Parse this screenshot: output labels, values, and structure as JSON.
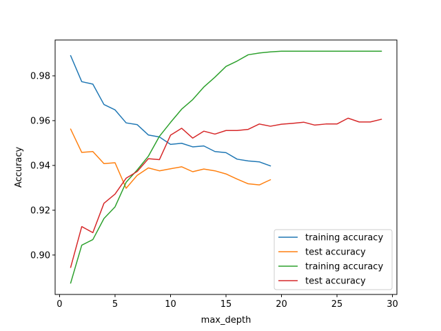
{
  "chart_data": {
    "type": "line",
    "title": "",
    "xlabel": "max_depth",
    "ylabel": "Accuracy",
    "xlim": [
      -0.4,
      30.4
    ],
    "ylim": [
      0.8824,
      0.996
    ],
    "xticks": [
      0,
      5,
      10,
      15,
      20,
      25,
      30
    ],
    "yticks": [
      0.9,
      0.92,
      0.94,
      0.96,
      0.98
    ],
    "ytick_labels": [
      "0.90",
      "0.92",
      "0.94",
      "0.96",
      "0.98"
    ],
    "grid": false,
    "legend_position": "lower-right",
    "series": [
      {
        "name": "training accuracy",
        "color": "#1f77b4",
        "x": [
          1,
          2,
          3,
          4,
          5,
          6,
          7,
          8,
          9,
          10,
          11,
          12,
          13,
          14,
          15,
          16,
          17,
          18,
          19
        ],
        "y": [
          0.989,
          0.9774,
          0.9763,
          0.9672,
          0.9648,
          0.959,
          0.9582,
          0.9536,
          0.9527,
          0.9494,
          0.9499,
          0.9483,
          0.9487,
          0.9462,
          0.9457,
          0.9428,
          0.942,
          0.9416,
          0.9398
        ]
      },
      {
        "name": "test accuracy",
        "color": "#ff7f0e",
        "x": [
          1,
          2,
          3,
          4,
          5,
          6,
          7,
          8,
          9,
          10,
          11,
          12,
          13,
          14,
          15,
          16,
          17,
          18,
          19
        ],
        "y": [
          0.9562,
          0.9458,
          0.9462,
          0.9408,
          0.9412,
          0.9298,
          0.9356,
          0.9389,
          0.9376,
          0.9385,
          0.9394,
          0.9372,
          0.9384,
          0.9376,
          0.9362,
          0.9339,
          0.9318,
          0.9313,
          0.9336
        ]
      },
      {
        "name": "training accuracy",
        "color": "#2ca02c",
        "x": [
          1,
          2,
          3,
          4,
          5,
          6,
          7,
          8,
          9,
          10,
          11,
          12,
          13,
          14,
          15,
          16,
          17,
          18,
          19,
          20,
          21,
          22,
          23,
          24,
          25,
          26,
          27,
          28,
          29
        ],
        "y": [
          0.8875,
          0.9044,
          0.9069,
          0.9163,
          0.9215,
          0.9325,
          0.938,
          0.9441,
          0.953,
          0.9592,
          0.9651,
          0.9694,
          0.975,
          0.9794,
          0.9842,
          0.9866,
          0.9894,
          0.9902,
          0.9907,
          0.991,
          0.991,
          0.991,
          0.991,
          0.991,
          0.991,
          0.991,
          0.991,
          0.991,
          0.991
        ]
      },
      {
        "name": "test accuracy",
        "color": "#d62728",
        "x": [
          1,
          2,
          3,
          4,
          5,
          6,
          7,
          8,
          9,
          10,
          11,
          12,
          13,
          14,
          15,
          16,
          17,
          18,
          19,
          20,
          21,
          22,
          23,
          24,
          25,
          26,
          27,
          28,
          29
        ],
        "y": [
          0.8945,
          0.9127,
          0.91,
          0.9231,
          0.9272,
          0.9343,
          0.9373,
          0.943,
          0.9426,
          0.9535,
          0.9566,
          0.9522,
          0.9553,
          0.954,
          0.9556,
          0.9556,
          0.9561,
          0.9585,
          0.9575,
          0.9584,
          0.9588,
          0.9593,
          0.958,
          0.9585,
          0.9585,
          0.9611,
          0.9594,
          0.9594,
          0.9606
        ]
      }
    ]
  }
}
